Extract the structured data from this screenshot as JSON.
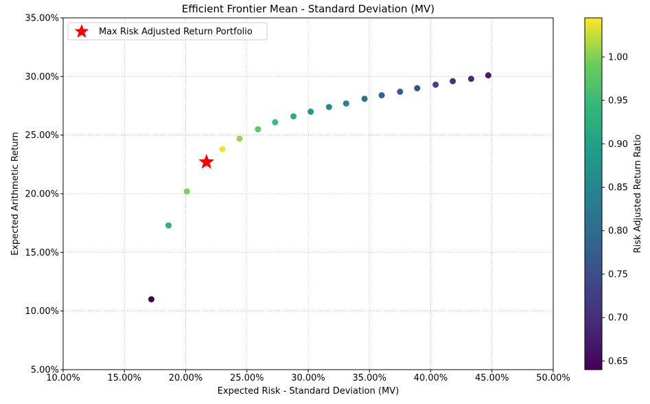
{
  "chart_data": {
    "type": "scatter",
    "title": "Efficient Frontier Mean - Standard Deviation (MV)",
    "xlabel": "Expected Risk - Standard Deviation (MV)",
    "ylabel": "Expected Arithmetic Return",
    "xlim": [
      0.1,
      0.5
    ],
    "ylim": [
      0.05,
      0.35
    ],
    "x_ticks": [
      0.1,
      0.15,
      0.2,
      0.25,
      0.3,
      0.35,
      0.4,
      0.45,
      0.5
    ],
    "x_tick_labels": [
      "10.00%",
      "15.00%",
      "20.00%",
      "25.00%",
      "30.00%",
      "35.00%",
      "40.00%",
      "45.00%",
      "50.00%"
    ],
    "y_ticks": [
      0.05,
      0.1,
      0.15,
      0.2,
      0.25,
      0.3,
      0.35
    ],
    "y_tick_labels": [
      "5.00%",
      "10.00%",
      "15.00%",
      "20.00%",
      "25.00%",
      "30.00%",
      "35.00%"
    ],
    "grid": true,
    "colormap": "viridis",
    "colorbar": {
      "label": "Risk Adjusted Return Ratio",
      "range": [
        0.64,
        1.045
      ],
      "ticks": [
        0.65,
        0.7,
        0.75,
        0.8,
        0.85,
        0.9,
        0.95,
        1.0
      ],
      "tick_labels": [
        "0.65",
        "0.70",
        "0.75",
        "0.80",
        "0.85",
        "0.90",
        "0.95",
        "1.00"
      ]
    },
    "points": [
      {
        "x": 0.172,
        "y": 0.11,
        "ratio": 0.64
      },
      {
        "x": 0.186,
        "y": 0.173,
        "ratio": 0.93
      },
      {
        "x": 0.201,
        "y": 0.202,
        "ratio": 1.0
      },
      {
        "x": 0.23,
        "y": 0.238,
        "ratio": 1.04
      },
      {
        "x": 0.244,
        "y": 0.247,
        "ratio": 1.01
      },
      {
        "x": 0.259,
        "y": 0.255,
        "ratio": 0.98
      },
      {
        "x": 0.273,
        "y": 0.261,
        "ratio": 0.95
      },
      {
        "x": 0.288,
        "y": 0.266,
        "ratio": 0.92
      },
      {
        "x": 0.302,
        "y": 0.27,
        "ratio": 0.89
      },
      {
        "x": 0.317,
        "y": 0.274,
        "ratio": 0.86
      },
      {
        "x": 0.331,
        "y": 0.277,
        "ratio": 0.84
      },
      {
        "x": 0.346,
        "y": 0.281,
        "ratio": 0.81
      },
      {
        "x": 0.36,
        "y": 0.284,
        "ratio": 0.79
      },
      {
        "x": 0.375,
        "y": 0.287,
        "ratio": 0.77
      },
      {
        "x": 0.389,
        "y": 0.29,
        "ratio": 0.75
      },
      {
        "x": 0.404,
        "y": 0.293,
        "ratio": 0.73
      },
      {
        "x": 0.418,
        "y": 0.296,
        "ratio": 0.71
      },
      {
        "x": 0.433,
        "y": 0.298,
        "ratio": 0.69
      },
      {
        "x": 0.447,
        "y": 0.301,
        "ratio": 0.67
      }
    ],
    "highlight": {
      "label": "Max Risk Adjusted Return Portfolio",
      "x": 0.217,
      "y": 0.227,
      "color": "#ff0000",
      "marker": "star"
    },
    "legend": {
      "placement": "top-left",
      "entries": [
        "Max Risk Adjusted Return Portfolio"
      ]
    }
  }
}
